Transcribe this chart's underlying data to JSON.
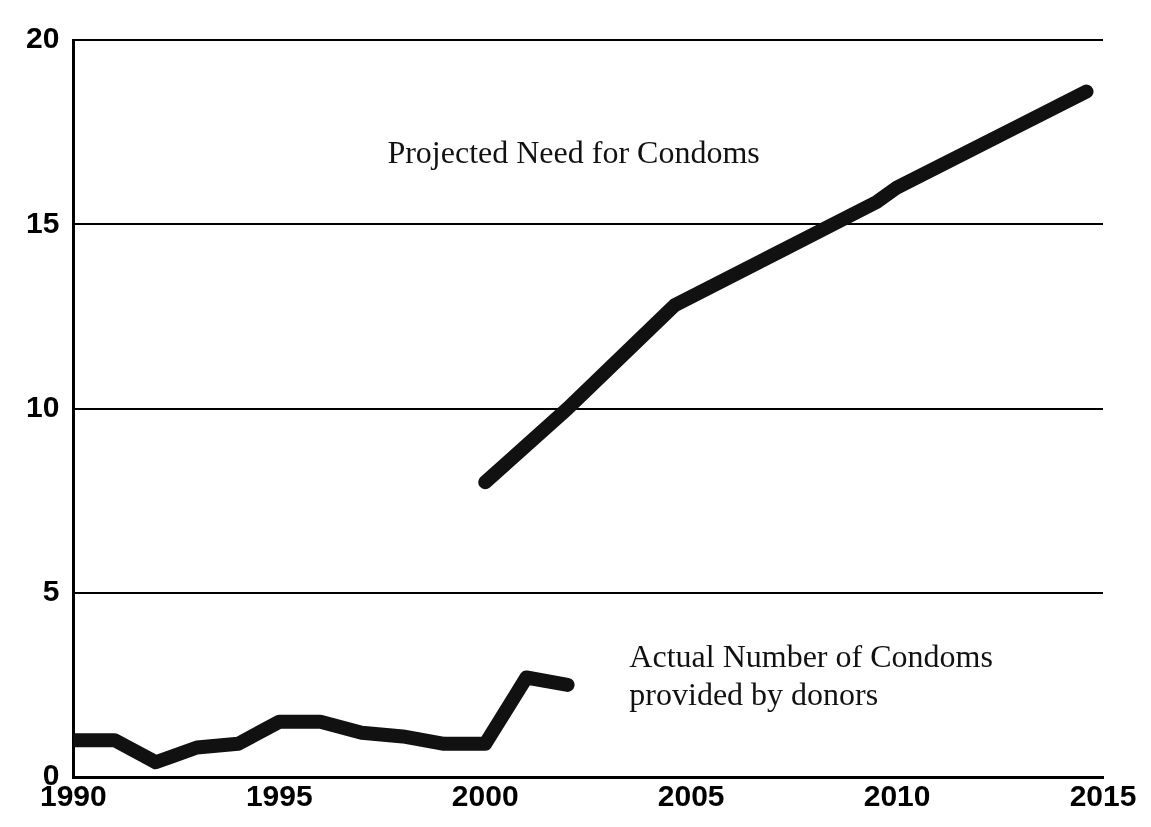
{
  "chart_data": {
    "type": "line",
    "xlim": [
      1990,
      2015
    ],
    "xticks": [
      1990,
      1995,
      2000,
      2005,
      2010,
      2015
    ],
    "ylim": [
      0,
      20
    ],
    "yticks": [
      0,
      5,
      10,
      15,
      20
    ],
    "grid": "y",
    "legend": false,
    "marker": "none",
    "line_style": "solid",
    "series": [
      {
        "name": "Projected Need for Condoms",
        "color": "#111111",
        "x": [
          2000,
          2002,
          2004.6,
          2009.5,
          2010,
          2014.6
        ],
        "values": [
          8.0,
          10.0,
          12.8,
          15.6,
          16.0,
          18.6
        ]
      },
      {
        "name": "Actual Number of Condoms\nprovided by donors",
        "color": "#111111",
        "x": [
          1990,
          1991,
          1992,
          1993,
          1994,
          1995,
          1996,
          1997,
          1998,
          1999,
          2000,
          2001,
          2002
        ],
        "values": [
          1.0,
          1.0,
          0.4,
          0.8,
          0.9,
          1.5,
          1.5,
          1.2,
          1.1,
          0.9,
          0.9,
          2.7,
          2.5
        ]
      }
    ]
  }
}
